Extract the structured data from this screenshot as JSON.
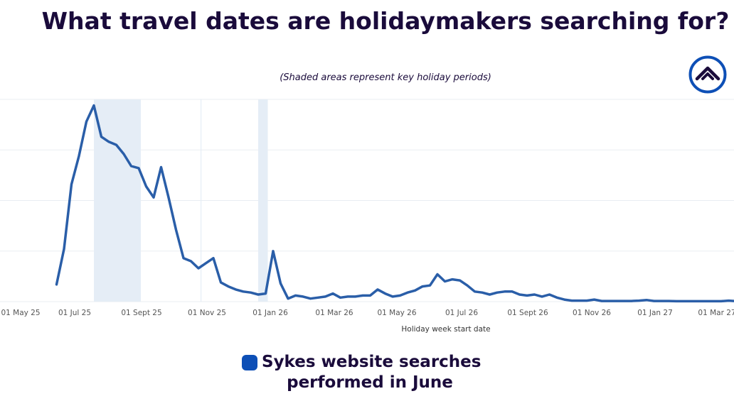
{
  "title": "What travel dates are holidaymakers searching for?",
  "subtitle": "(Shaded areas represent key holiday periods)",
  "legend_label_1": "Sykes website searches",
  "legend_label_2": "performed in June",
  "logo_icon": "house-in-circle-icon",
  "colors": {
    "line": "#2a5ea8",
    "shade": "#e5edf6",
    "title": "#1a0b3b",
    "legend_swatch": "#0d4fb6"
  },
  "chart_data": {
    "type": "line",
    "title": "What travel dates are holidaymakers searching for?",
    "subtitle": "(Shaded areas represent key holiday periods)",
    "xlabel": "Holiday week start date",
    "ylabel": "",
    "x_ticks": [
      "01 May 25",
      "01 Jul 25",
      "01 Sept 25",
      "01 Nov 25",
      "01 Jan 26",
      "01 Mar 26",
      "01 May 26",
      "01 Jul 26",
      "01 Sept 26",
      "01 Nov 26",
      "01 Jan 27",
      "01 Mar 27"
    ],
    "y_tick_labels_visible": false,
    "grid": true,
    "ylim": [
      0,
      100
    ],
    "shaded_periods": [
      {
        "start": "2025-07-19",
        "end": "2025-09-01"
      },
      {
        "start": "2025-10-27",
        "end": "2025-10-27"
      },
      {
        "start": "2025-12-20",
        "end": "2025-12-29"
      }
    ],
    "series": [
      {
        "name": "Sykes website searches performed in June",
        "x": [
          "2025-06-14",
          "2025-06-21",
          "2025-06-28",
          "2025-07-05",
          "2025-07-12",
          "2025-07-19",
          "2025-07-26",
          "2025-08-02",
          "2025-08-09",
          "2025-08-16",
          "2025-08-23",
          "2025-08-30",
          "2025-09-06",
          "2025-09-13",
          "2025-09-20",
          "2025-09-27",
          "2025-10-04",
          "2025-10-11",
          "2025-10-18",
          "2025-10-25",
          "2025-11-01",
          "2025-11-08",
          "2025-11-15",
          "2025-11-22",
          "2025-11-29",
          "2025-12-06",
          "2025-12-13",
          "2025-12-20",
          "2025-12-27",
          "2026-01-03",
          "2026-01-10",
          "2026-01-17",
          "2026-01-24",
          "2026-01-31",
          "2026-02-07",
          "2026-02-14",
          "2026-02-21",
          "2026-02-28",
          "2026-03-07",
          "2026-03-14",
          "2026-03-21",
          "2026-03-28",
          "2026-04-04",
          "2026-04-11",
          "2026-04-18",
          "2026-04-25",
          "2026-05-02",
          "2026-05-09",
          "2026-05-16",
          "2026-05-23",
          "2026-05-30",
          "2026-06-06",
          "2026-06-13",
          "2026-06-20",
          "2026-06-27",
          "2026-07-04",
          "2026-07-11",
          "2026-07-18",
          "2026-07-25",
          "2026-08-01",
          "2026-08-08",
          "2026-08-15",
          "2026-08-22",
          "2026-08-29",
          "2026-09-05",
          "2026-09-12",
          "2026-09-19",
          "2026-09-26",
          "2026-10-03",
          "2026-10-10",
          "2026-10-17",
          "2026-10-24",
          "2026-10-31",
          "2026-11-07",
          "2026-11-14",
          "2026-11-21",
          "2026-11-28",
          "2026-12-05",
          "2026-12-12",
          "2026-12-19",
          "2026-12-26",
          "2027-01-02",
          "2027-01-09",
          "2027-01-16",
          "2027-01-23",
          "2027-01-30",
          "2027-02-06",
          "2027-02-13",
          "2027-02-20",
          "2027-02-27",
          "2027-03-06",
          "2027-03-13"
        ],
        "values": [
          8.5,
          26,
          58,
          72,
          89,
          97,
          81.5,
          79,
          77.5,
          73,
          67,
          66,
          57,
          51.5,
          66.5,
          51.5,
          35.5,
          21.5,
          20,
          16.5,
          19,
          21.5,
          9.5,
          7.5,
          6,
          5,
          4.5,
          3.5,
          4,
          25,
          9,
          1.5,
          3,
          2.5,
          1.5,
          2,
          2.5,
          4,
          2,
          2.5,
          2.5,
          3,
          3,
          6,
          4,
          2.5,
          3,
          4.5,
          5.5,
          7.5,
          8,
          13.5,
          10,
          11,
          10.5,
          8,
          5,
          4.5,
          3.5,
          4.5,
          5,
          5,
          3.5,
          3,
          3.5,
          2.5,
          3.5,
          2,
          1,
          0.5,
          0.5,
          0.5,
          1,
          0.3,
          0.3,
          0.3,
          0.3,
          0.3,
          0.5,
          0.8,
          0.3,
          0.3,
          0.3,
          0.2,
          0.2,
          0.2,
          0.2,
          0.2,
          0.2,
          0.2,
          0.5,
          0.2
        ]
      }
    ]
  }
}
